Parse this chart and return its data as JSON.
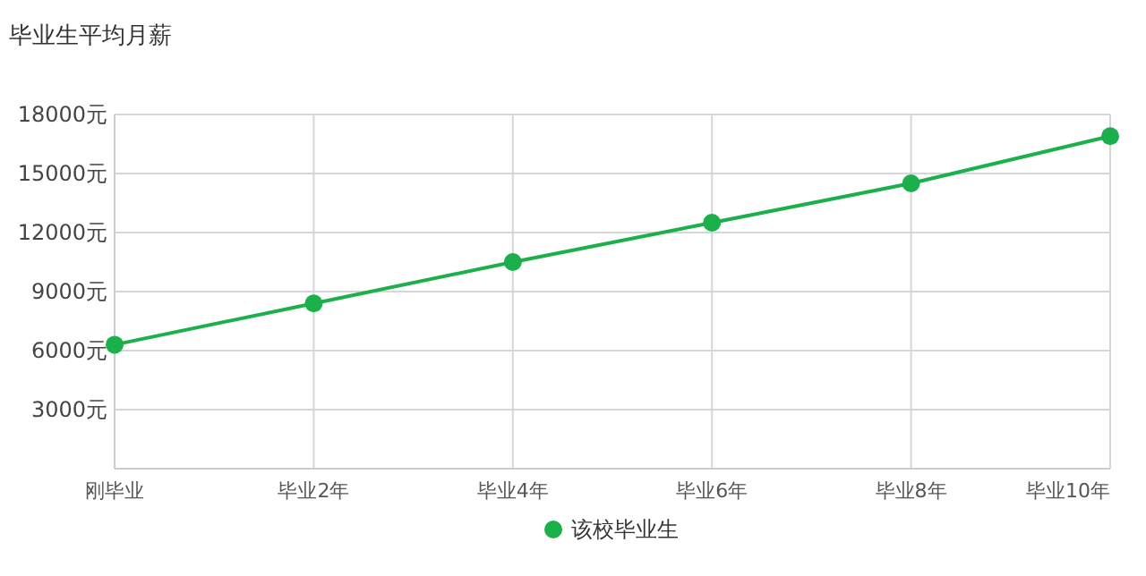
{
  "chart_data": {
    "type": "line",
    "title": "毕业生平均月薪",
    "categories": [
      "刚毕业",
      "毕业2年",
      "毕业4年",
      "毕业6年",
      "毕业8年",
      "毕业10年"
    ],
    "series": [
      {
        "name": "该校毕业生",
        "color": "#1bb04c",
        "values": [
          6300,
          8400,
          10500,
          12500,
          14500,
          16900
        ]
      }
    ],
    "ylim": [
      0,
      18000
    ],
    "yticks": [
      {
        "value": 3000,
        "label": "3000元"
      },
      {
        "value": 6000,
        "label": "6000元"
      },
      {
        "value": 9000,
        "label": "9000元"
      },
      {
        "value": 12000,
        "label": "12000元"
      },
      {
        "value": 15000,
        "label": "15000元"
      },
      {
        "value": 18000,
        "label": "18000元"
      }
    ],
    "grid": true,
    "legend": "bottom",
    "marker": "circle",
    "line_style": "solid"
  }
}
